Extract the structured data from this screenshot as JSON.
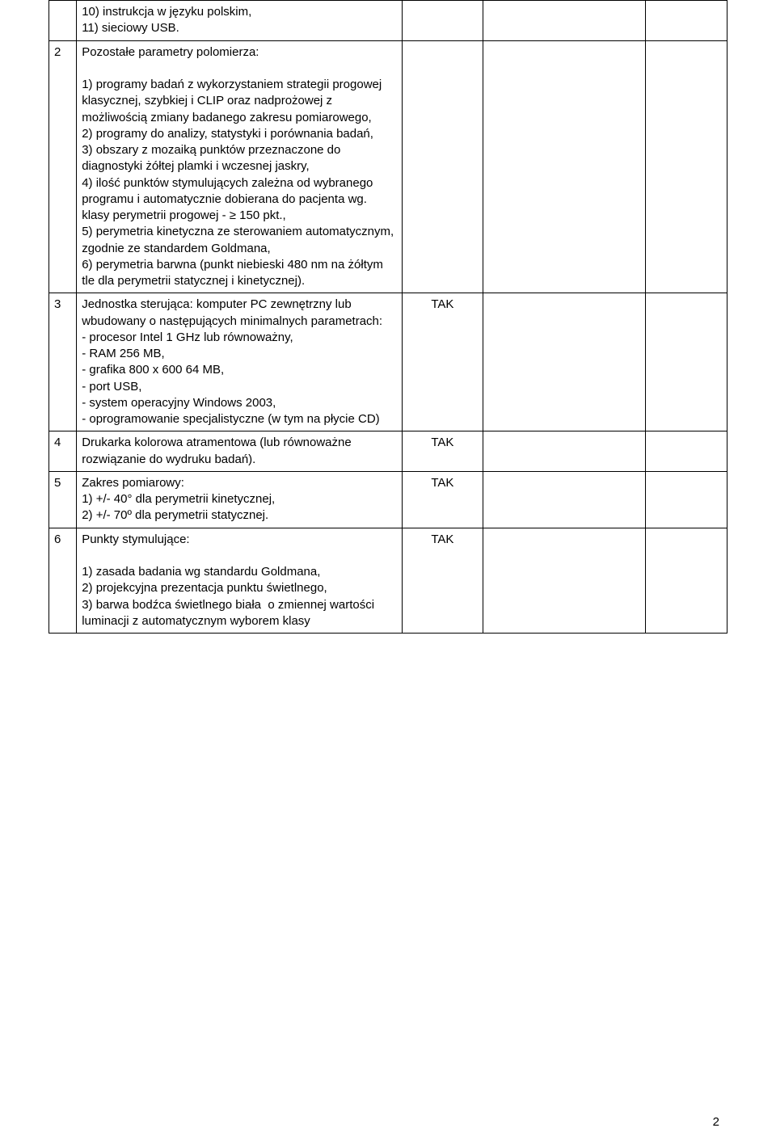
{
  "rows": [
    {
      "num": "",
      "desc": "10) instrukcja w języku polskim,\n11) sieciowy USB.",
      "c3": "",
      "c4": "",
      "c5": ""
    },
    {
      "num": "2",
      "desc": "Pozostałe parametry polomierza:\n\n1) programy badań z wykorzystaniem strategii progowej klasycznej, szybkiej i CLIP oraz nadprożowej z możliwością zmiany badanego zakresu pomiarowego,\n2) programy do analizy, statystyki i porównania badań,\n3) obszary z mozaiką punktów przeznaczone do diagnostyki żółtej plamki i wczesnej jaskry,\n4) ilość punktów stymulujących zależna od wybranego programu i automatycznie dobierana do pacjenta wg. klasy perymetrii progowej - ≥ 150 pkt.,\n5) perymetria kinetyczna ze sterowaniem automatycznym, zgodnie ze standardem Goldmana,\n6) perymetria barwna (punkt niebieski 480 nm na żółtym tle dla perymetrii statycznej i kinetycznej).",
      "c3": "",
      "c4": "",
      "c5": ""
    },
    {
      "num": "3",
      "desc": "Jednostka sterująca: komputer PC zewnętrzny lub wbudowany o następujących minimalnych parametrach:\n- procesor Intel 1 GHz lub równoważny,\n- RAM 256 MB,\n- grafika 800 x 600 64 MB,\n- port USB,\n- system operacyjny Windows 2003,\n- oprogramowanie specjalistyczne (w tym na płycie CD)",
      "c3": "TAK",
      "c4": "",
      "c5": ""
    },
    {
      "num": "4",
      "desc": "Drukarka kolorowa atramentowa (lub równoważne rozwiązanie do wydruku badań).",
      "c3": "TAK",
      "c4": "",
      "c5": ""
    },
    {
      "num": "5",
      "desc": "Zakres pomiarowy:\n1) +/- 40° dla perymetrii kinetycznej,\n2) +/- 70º dla perymetrii statycznej.",
      "c3": "TAK",
      "c4": "",
      "c5": ""
    },
    {
      "num": "6",
      "desc": "Punkty stymulujące:\n\n1) zasada badania wg standardu Goldmana,\n2) projekcyjna prezentacja punktu świetlnego,\n3) barwa bodźca świetlnego biała  o zmiennej wartości luminacji z automatycznym wyborem klasy",
      "c3": "TAK",
      "c4": "",
      "c5": ""
    }
  ],
  "page_number": "2"
}
